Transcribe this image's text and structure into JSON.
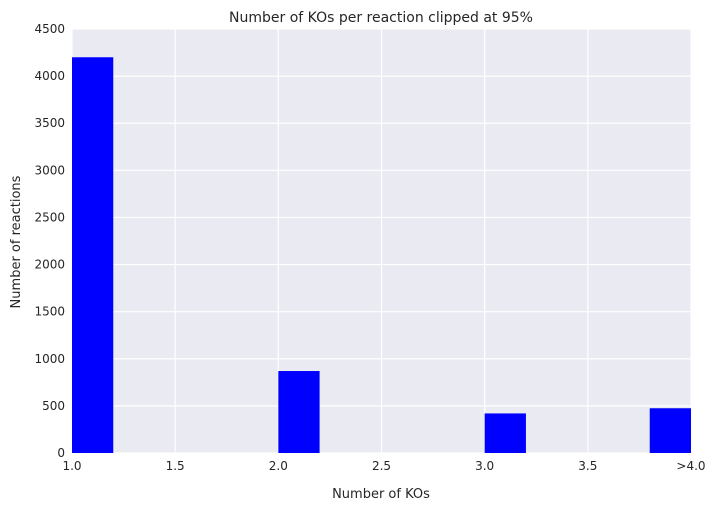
{
  "chart_data": {
    "type": "bar",
    "title": "Number of KOs per reaction clipped at 95%",
    "xlabel": "Number of KOs",
    "ylabel": "Number of reactions",
    "xlim": [
      1.0,
      4.0
    ],
    "ylim": [
      0,
      4500
    ],
    "x_ticks": [
      1.0,
      1.5,
      2.0,
      2.5,
      3.0,
      3.5,
      4.0
    ],
    "x_tick_labels": [
      "1.0",
      "1.5",
      "2.0",
      "2.5",
      "3.0",
      "3.5",
      ">4.0"
    ],
    "y_ticks": [
      0,
      500,
      1000,
      1500,
      2000,
      2500,
      3000,
      3500,
      4000,
      4500
    ],
    "y_tick_labels": [
      "0",
      "500",
      "1000",
      "1500",
      "2000",
      "2500",
      "3000",
      "3500",
      "4000",
      "4500"
    ],
    "bins": [
      {
        "x0": 1.0,
        "x1": 1.2,
        "value": 4200
      },
      {
        "x0": 2.0,
        "x1": 2.2,
        "value": 870
      },
      {
        "x0": 3.0,
        "x1": 3.2,
        "value": 420
      },
      {
        "x0": 3.8,
        "x1": 4.0,
        "value": 475
      }
    ],
    "grid": true,
    "colors": {
      "bar": "#0000ff",
      "background": "#eaeaf2",
      "grid": "#ffffff"
    }
  }
}
